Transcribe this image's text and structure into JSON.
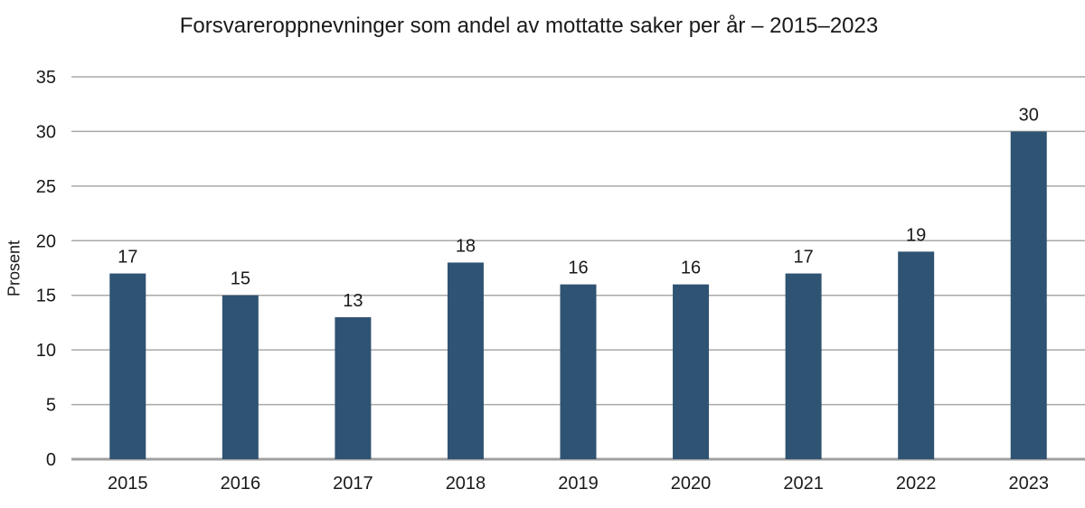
{
  "chart_data": {
    "type": "bar",
    "title": "Forsvareroppnevninger som andel av mottatte saker per år – 2015–2023",
    "ylabel": "Prosent",
    "xlabel": "",
    "categories": [
      "2015",
      "2016",
      "2017",
      "2018",
      "2019",
      "2020",
      "2021",
      "2022",
      "2023"
    ],
    "values": [
      17,
      15,
      13,
      18,
      16,
      16,
      17,
      19,
      30
    ],
    "ylim": [
      0,
      35
    ],
    "yticks": [
      0,
      5,
      10,
      15,
      20,
      25,
      30,
      35
    ],
    "grid": "horizontal",
    "legend": "none",
    "colors": {
      "bar": "#2f5372",
      "gridline": "#a9a9a9",
      "axis_line": "#a0a0a0",
      "text": "#1a1a1a",
      "background": "#ffffff"
    }
  }
}
